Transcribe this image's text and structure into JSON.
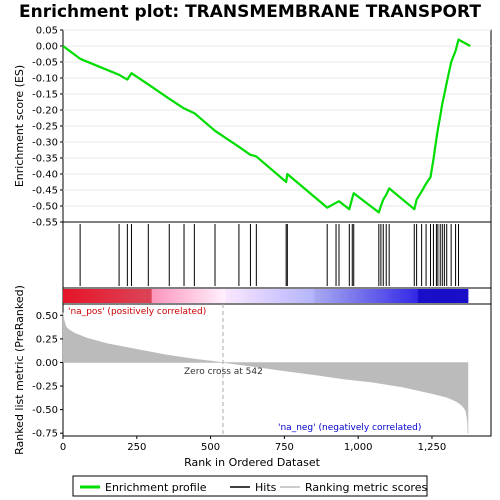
{
  "chart_data": [
    {
      "type": "line",
      "title": "Enrichment plot: TRANSMEMBRANE TRANSPORT",
      "ylabel": "Enrichment score (ES)",
      "ylim": [
        -0.55,
        0.05
      ],
      "yticks": [
        "0.05",
        "0.00",
        "-0.05",
        "-0.10",
        "-0.15",
        "-0.20",
        "-0.25",
        "-0.30",
        "-0.35",
        "-0.40",
        "-0.45",
        "-0.50",
        "-0.55"
      ],
      "yvalues": [
        0.05,
        0.0,
        -0.05,
        -0.1,
        -0.15,
        -0.2,
        -0.25,
        -0.3,
        -0.35,
        -0.4,
        -0.45,
        -0.5,
        -0.55
      ],
      "xlim": [
        0,
        1450
      ],
      "series": [
        {
          "name": "Enrichment profile",
          "color": "#00dd00",
          "x": [
            0,
            58,
            190,
            218,
            232,
            289,
            360,
            410,
            445,
            515,
            596,
            635,
            655,
            756,
            760,
            895,
            925,
            935,
            970,
            980,
            985,
            1070,
            1077,
            1085,
            1095,
            1105,
            1190,
            1198,
            1215,
            1230,
            1245,
            1255,
            1265,
            1270,
            1278,
            1285,
            1292,
            1300,
            1315,
            1330,
            1340,
            1380
          ],
          "y": [
            0.0,
            -0.04,
            -0.09,
            -0.105,
            -0.085,
            -0.12,
            -0.165,
            -0.195,
            -0.21,
            -0.265,
            -0.315,
            -0.34,
            -0.345,
            -0.425,
            -0.4,
            -0.505,
            -0.49,
            -0.485,
            -0.51,
            -0.475,
            -0.46,
            -0.52,
            -0.5,
            -0.48,
            -0.465,
            -0.445,
            -0.51,
            -0.48,
            -0.455,
            -0.43,
            -0.41,
            -0.355,
            -0.29,
            -0.26,
            -0.22,
            -0.18,
            -0.15,
            -0.115,
            -0.05,
            -0.015,
            0.02,
            0.0
          ]
        }
      ],
      "hits": [
        58,
        190,
        218,
        232,
        289,
        360,
        410,
        445,
        515,
        596,
        635,
        655,
        756,
        760,
        895,
        925,
        935,
        970,
        980,
        985,
        1070,
        1077,
        1085,
        1095,
        1105,
        1190,
        1198,
        1215,
        1230,
        1245,
        1255,
        1265,
        1270,
        1278,
        1285,
        1292,
        1300,
        1315,
        1330,
        1340
      ]
    },
    {
      "type": "area",
      "ylabel": "Ranked list metric (PreRanked)",
      "xlabel": "Rank in Ordered Dataset",
      "xticks": [
        "0",
        "250",
        "500",
        "750",
        "1,000",
        "1,250"
      ],
      "xvalues": [
        0,
        250,
        500,
        750,
        1000,
        1250
      ],
      "xlim": [
        0,
        1450
      ],
      "ylim": [
        -0.78,
        0.62
      ],
      "yticks": [
        "0.50",
        "0.25",
        "0.00",
        "-0.25",
        "-0.50",
        "-0.75"
      ],
      "yvalues": [
        0.5,
        0.25,
        0.0,
        -0.25,
        -0.5,
        -0.75
      ],
      "series": [
        {
          "name": "Ranking metric scores",
          "color": "#bbbbbb",
          "x": [
            0,
            3,
            6,
            10,
            20,
            40,
            80,
            150,
            250,
            350,
            450,
            542,
            650,
            750,
            850,
            950,
            1050,
            1150,
            1250,
            1300,
            1330,
            1345,
            1355,
            1362,
            1366,
            1370,
            1372
          ],
          "y": [
            0.53,
            0.46,
            0.42,
            0.38,
            0.35,
            0.31,
            0.26,
            0.2,
            0.14,
            0.08,
            0.035,
            0.0,
            -0.045,
            -0.09,
            -0.13,
            -0.175,
            -0.21,
            -0.26,
            -0.33,
            -0.37,
            -0.41,
            -0.44,
            -0.47,
            -0.5,
            -0.53,
            -0.62,
            -0.75
          ]
        }
      ],
      "annotations": {
        "pos": "'na_pos' (positively correlated)",
        "neg": "'na_neg' (negatively correlated)",
        "zero": "Zero cross at 542",
        "pos_color": "#cc0000",
        "neg_color": "#0000cc"
      },
      "zero_cross": 542
    }
  ],
  "legend": [
    {
      "label": "Enrichment profile",
      "color": "#00dd00"
    },
    {
      "label": "Hits",
      "color": "#000000"
    },
    {
      "label": "Ranking metric scores",
      "color": "#bbbbbb"
    }
  ]
}
